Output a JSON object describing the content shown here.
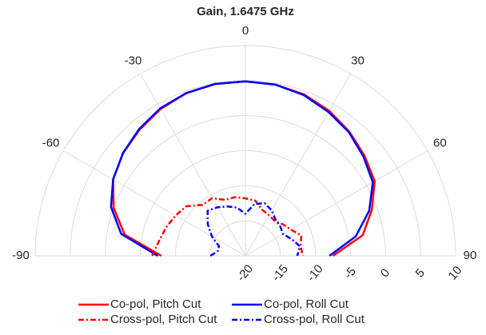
{
  "chart_data": {
    "type": "polar",
    "title": "Gain, 1.6475 GHz",
    "theta": [
      -90,
      -80,
      -70,
      -60,
      -50,
      -40,
      -30,
      -20,
      -10,
      0,
      10,
      20,
      30,
      40,
      50,
      60,
      70,
      80,
      90
    ],
    "thetalim": [
      -90,
      90
    ],
    "thetaticks": [
      -90,
      -60,
      -30,
      0,
      30,
      60,
      90
    ],
    "rlim": [
      -20,
      10
    ],
    "rticks": [
      -20,
      -15,
      -10,
      -5,
      0,
      5,
      10
    ],
    "grid": true,
    "series": [
      {
        "name": "Co-pol, Pitch Cut",
        "color": "#ff0000",
        "linestyle": "solid",
        "values": [
          -8,
          -2.5,
          0,
          1.8,
          2.8,
          3.5,
          4.2,
          4.7,
          4.9,
          4.9,
          4.8,
          4.5,
          3.9,
          3.1,
          2.2,
          1.3,
          -0.8,
          -3,
          -7.5
        ]
      },
      {
        "name": "Co-pol, Roll Cut",
        "color": "#0000ff",
        "linestyle": "solid",
        "values": [
          -7.5,
          -2,
          0.4,
          1.8,
          2.8,
          3.6,
          4.3,
          4.7,
          4.9,
          4.9,
          4.8,
          4.4,
          3.7,
          3,
          2,
          1,
          -1.2,
          -4,
          -8
        ]
      },
      {
        "name": "Cross-pol, Pitch Cut",
        "color": "#ff0000",
        "linestyle": "dashdot",
        "values": [
          -6.7,
          -7.5,
          -8,
          -8.5,
          -9,
          -10.5,
          -10.5,
          -11.5,
          -11.5,
          -11.8,
          -12,
          -13,
          -13.3,
          -13.5,
          -13,
          -12.5,
          -11.5,
          -12,
          -11.8
        ]
      },
      {
        "name": "Cross-pol, Roll Cut",
        "color": "#0000ff",
        "linestyle": "dashdot",
        "values": [
          -15,
          -16,
          -16,
          -14.5,
          -13,
          -11.6,
          -12,
          -12.5,
          -13,
          -14,
          -12.5,
          -12,
          -12.5,
          -13.3,
          -13.5,
          -13.8,
          -13,
          -12.1,
          -12.6
        ]
      }
    ]
  }
}
